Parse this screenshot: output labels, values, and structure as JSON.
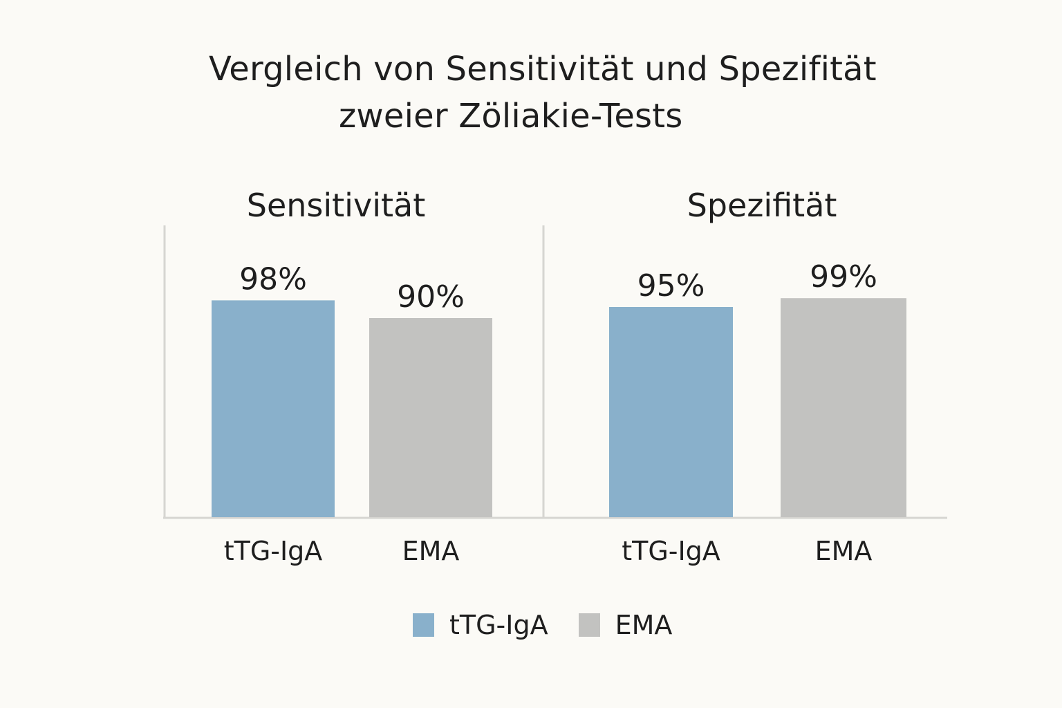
{
  "chart_data": {
    "type": "bar",
    "title_lines": [
      "Vergleich von Sensitivität und Spezifität",
      "zweier Zöliakie-Tests"
    ],
    "panels": [
      {
        "title": "Sensitivität",
        "categories": [
          "tTG-IgA",
          "EMA"
        ],
        "values": [
          98,
          90
        ],
        "labels": [
          "98%",
          "90%"
        ]
      },
      {
        "title": "Spezifität",
        "categories": [
          "tTG-IgA",
          "EMA"
        ],
        "values": [
          95,
          99
        ],
        "labels": [
          "95%",
          "99%"
        ]
      }
    ],
    "legend": [
      {
        "name": "tTG-IgA",
        "color": "#89b0cb"
      },
      {
        "name": "EMA",
        "color": "#c2c2c0"
      }
    ],
    "legend_position": "bottom-center",
    "grid": false
  }
}
